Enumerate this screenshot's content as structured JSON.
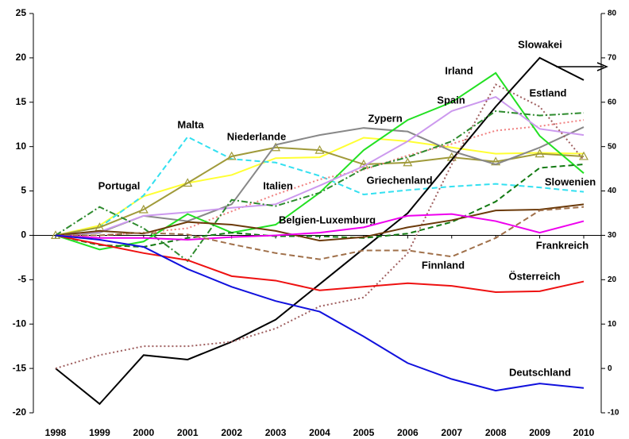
{
  "chart_data": {
    "type": "line",
    "categories": [
      "1998",
      "1999",
      "2000",
      "2001",
      "2002",
      "2003",
      "2004",
      "2005",
      "2006",
      "2007",
      "2008",
      "2009",
      "2010"
    ],
    "ylim": [
      -20,
      25
    ],
    "yticks": [
      -20,
      -15,
      -10,
      -5,
      0,
      5,
      10,
      15,
      20,
      25
    ],
    "y2lim": [
      -10,
      80
    ],
    "y2ticks": [
      -10,
      0,
      10,
      20,
      30,
      40,
      50,
      60,
      70,
      80
    ],
    "series": [
      {
        "name": "Portugal",
        "color": "#ffff33",
        "style": "solid",
        "values": [
          0,
          1.1,
          4.4,
          5.9,
          6.8,
          8.7,
          8.8,
          11,
          10.6,
          9.9,
          9.2,
          9.3,
          9.2
        ]
      },
      {
        "name": "Malta",
        "color": "#33e0f0",
        "style": "dashed",
        "values": [
          0,
          0.9,
          4.5,
          11.1,
          8.6,
          8.2,
          6.7,
          4.6,
          5.1,
          5.5,
          5.8,
          5.4,
          4.9
        ]
      },
      {
        "name": "Niederlande",
        "color": "#a09a3a",
        "style": "solid",
        "marker": "triangle",
        "values": [
          0,
          0.9,
          2.9,
          5.9,
          8.9,
          9.9,
          9.6,
          8,
          8.2,
          8.8,
          8.3,
          9.2,
          8.9
        ]
      },
      {
        "name": "Italien",
        "color": "#f08080",
        "style": "dotted",
        "values": [
          0,
          0,
          0.3,
          0.8,
          2.7,
          4.6,
          6.3,
          7.4,
          9,
          10.3,
          11.8,
          12.3,
          13
        ]
      },
      {
        "name": "Zypern",
        "color": "#888888",
        "style": "solid",
        "values": [
          0,
          0.3,
          2.2,
          1.6,
          3.5,
          10.2,
          11.3,
          12.1,
          11.7,
          9.5,
          8,
          9.9,
          12.2
        ]
      },
      {
        "name": "Irland",
        "color": "#22e022",
        "style": "solid",
        "values": [
          0,
          -1.6,
          -0.7,
          2.4,
          0.3,
          1.2,
          4.8,
          9.6,
          13,
          15,
          18.3,
          11.2,
          7
        ]
      },
      {
        "name": "Spain",
        "color": "#cc99ee",
        "style": "solid",
        "values": [
          0,
          0.4,
          2.2,
          2.6,
          3.1,
          3.5,
          5.6,
          7.8,
          10.6,
          14,
          15.6,
          12,
          11.3
        ]
      },
      {
        "name": "Slowakei",
        "color": "#000000",
        "style": "solid",
        "axis": "y2",
        "values": [
          0,
          -8,
          3,
          2,
          6,
          11,
          19,
          27,
          35,
          47,
          59,
          70,
          65
        ]
      },
      {
        "name": "Estland",
        "color": "#a06060",
        "style": "dotted",
        "axis": "y2",
        "values": [
          0,
          3,
          5,
          5,
          6,
          9,
          14,
          16,
          26,
          46,
          64,
          59,
          47
        ]
      },
      {
        "name": "Griechenland",
        "color": "#2e8b2e",
        "style": "dashdot",
        "values": [
          0,
          3.2,
          0.8,
          -2.9,
          4,
          3.3,
          4.8,
          7.5,
          8.8,
          10.6,
          14,
          13.5,
          13.8
        ]
      },
      {
        "name": "Slowenien",
        "color": "#137a13",
        "style": "dashed",
        "values": [
          0,
          -1.1,
          -1.3,
          -0.3,
          0.3,
          -0.1,
          -0.1,
          -0.3,
          0.2,
          1.5,
          3.8,
          7.6,
          8
        ]
      },
      {
        "name": "Belgien-Luxemburg",
        "color": "#6b3a0a",
        "style": "solid",
        "values": [
          0,
          0.5,
          0.2,
          1.5,
          1.2,
          0.5,
          -0.6,
          -0.2,
          0.9,
          1.7,
          2.8,
          2.9,
          3.5
        ]
      },
      {
        "name": "Frankreich",
        "color": "#ee00ee",
        "style": "solid",
        "values": [
          0,
          -0.3,
          -0.3,
          -0.5,
          -0.2,
          0,
          0.3,
          0.9,
          2.2,
          2.4,
          1.6,
          0.3,
          1.6
        ]
      },
      {
        "name": "Finnland",
        "color": "#a0704a",
        "style": "dashed",
        "values": [
          0,
          0,
          0.3,
          0.1,
          -1,
          -2,
          -2.7,
          -1.7,
          -1.7,
          -2.4,
          -0.3,
          2.8,
          3.2
        ]
      },
      {
        "name": "Österreich",
        "color": "#ee1111",
        "style": "solid",
        "values": [
          0,
          -1,
          -2,
          -2.8,
          -4.6,
          -5.1,
          -6.2,
          -5.8,
          -5.4,
          -5.7,
          -6.4,
          -6.3,
          -5.2
        ]
      },
      {
        "name": "Deutschland",
        "color": "#1111dd",
        "style": "solid",
        "values": [
          0,
          -0.5,
          -1.3,
          -3.8,
          -5.8,
          -7.4,
          -8.6,
          -11.4,
          -14.4,
          -16.2,
          -17.5,
          -16.7,
          -17.2
        ]
      }
    ]
  }
}
